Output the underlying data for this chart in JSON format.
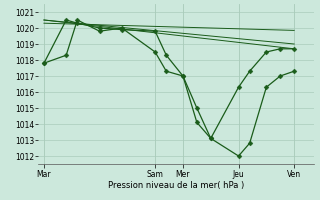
{
  "background_color": "#cce8dc",
  "grid_color": "#aaccbb",
  "line_color": "#1a5c1a",
  "xlabel": "Pression niveau de la mer( hPa )",
  "ylim": [
    1011.5,
    1021.5
  ],
  "yticks": [
    1012,
    1013,
    1014,
    1015,
    1016,
    1017,
    1018,
    1019,
    1020,
    1021
  ],
  "day_labels": [
    "Mar",
    "Sam",
    "Mer",
    "Jeu",
    "Ven"
  ],
  "day_positions": [
    0,
    40,
    50,
    70,
    90
  ],
  "xlim": [
    -2,
    97
  ],
  "series1_x": [
    0,
    8,
    12,
    20,
    28,
    40,
    44,
    50,
    55,
    60,
    70,
    74,
    80,
    85,
    90
  ],
  "series1_y": [
    1017.8,
    1018.3,
    1020.5,
    1019.8,
    1020.0,
    1018.5,
    1017.3,
    1017.0,
    1014.1,
    1013.1,
    1012.0,
    1012.8,
    1016.3,
    1017.0,
    1017.3
  ],
  "series2_x": [
    0,
    8,
    12,
    20,
    28,
    40,
    44,
    50,
    55,
    60,
    70,
    74,
    80,
    85,
    90
  ],
  "series2_y": [
    1017.8,
    1020.5,
    1020.3,
    1020.0,
    1019.9,
    1019.8,
    1018.3,
    1017.0,
    1015.0,
    1013.1,
    1016.3,
    1017.3,
    1018.5,
    1018.7,
    1018.7
  ],
  "trend1_x": [
    0,
    90
  ],
  "trend1_y": [
    1020.5,
    1019.0
  ],
  "trend2_x": [
    0,
    90
  ],
  "trend2_y": [
    1020.5,
    1018.7
  ],
  "trend3_x": [
    0,
    90
  ],
  "trend3_y": [
    1020.3,
    1019.85
  ],
  "marker": "D",
  "markersize": 2.5,
  "linewidth": 0.9
}
